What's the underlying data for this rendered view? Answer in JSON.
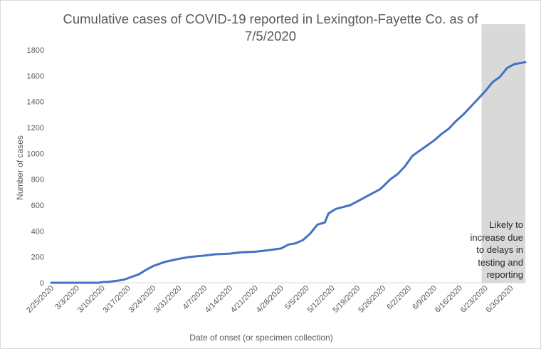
{
  "chart_data": {
    "type": "line",
    "title_line1": "Cumulative cases of COVID-19 reported in Lexington-Fayette Co.  as of",
    "title_line2": "7/5/2020",
    "xlabel": "Date of onset (or specimen collection)",
    "ylabel": "Number  of cases",
    "ylim": [
      0,
      1800
    ],
    "yticks": [
      0,
      200,
      400,
      600,
      800,
      1000,
      1200,
      1400,
      1600,
      1800
    ],
    "x_start": "2/25/2020",
    "x_end": "7/4/2020",
    "xtick_labels": [
      "2/25/2020",
      "3/3/2020",
      "3/10/2020",
      "3/17/2020",
      "3/24/2020",
      "3/31/2020",
      "4/7/2020",
      "4/14/2020",
      "4/21/2020",
      "4/28/2020",
      "5/5/2020",
      "5/12/2020",
      "5/19/2020",
      "5/26/2020",
      "6/2/2020",
      "6/9/2020",
      "6/16/2020",
      "6/23/2020",
      "6/30/2020"
    ],
    "grid": false,
    "legend": "none",
    "series_color": "#4472c4",
    "shaded_region": {
      "from": "6/22/2020",
      "to": "7/4/2020",
      "color": "#d9d9d9"
    },
    "annotation": [
      "Likely to",
      "increase due",
      "to delays in",
      "testing and",
      "reporting"
    ],
    "series": [
      {
        "x": [
          "2/25/2020",
          "3/3/2020",
          "3/9/2020",
          "3/10/2020",
          "3/12/2020",
          "3/14/2020",
          "3/16/2020",
          "3/18/2020",
          "3/20/2020",
          "3/22/2020",
          "3/24/2020",
          "3/27/2020",
          "3/31/2020",
          "4/3/2020",
          "4/7/2020",
          "4/10/2020",
          "4/14/2020",
          "4/17/2020",
          "4/21/2020",
          "4/24/2020",
          "4/28/2020",
          "4/30/2020",
          "5/2/2020",
          "5/4/2020",
          "5/6/2020",
          "5/8/2020",
          "5/10/2020",
          "5/11/2020",
          "5/13/2020",
          "5/15/2020",
          "5/17/2020",
          "5/19/2020",
          "5/21/2020",
          "5/23/2020",
          "5/25/2020",
          "5/26/2020",
          "5/28/2020",
          "5/30/2020",
          "6/1/2020",
          "6/3/2020",
          "6/5/2020",
          "6/7/2020",
          "6/9/2020",
          "6/11/2020",
          "6/13/2020",
          "6/15/2020",
          "6/17/2020",
          "6/19/2020",
          "6/21/2020",
          "6/23/2020",
          "6/25/2020",
          "6/27/2020",
          "6/29/2020",
          "7/1/2020",
          "7/4/2020"
        ],
        "values": [
          0,
          0,
          0,
          5,
          8,
          15,
          25,
          45,
          65,
          100,
          130,
          160,
          185,
          200,
          210,
          220,
          225,
          235,
          240,
          250,
          265,
          295,
          305,
          330,
          380,
          450,
          465,
          535,
          570,
          585,
          600,
          630,
          660,
          690,
          720,
          745,
          800,
          840,
          900,
          980,
          1020,
          1060,
          1100,
          1150,
          1190,
          1250,
          1300,
          1360,
          1420,
          1480,
          1550,
          1590,
          1660,
          1690,
          1705
        ]
      }
    ]
  }
}
